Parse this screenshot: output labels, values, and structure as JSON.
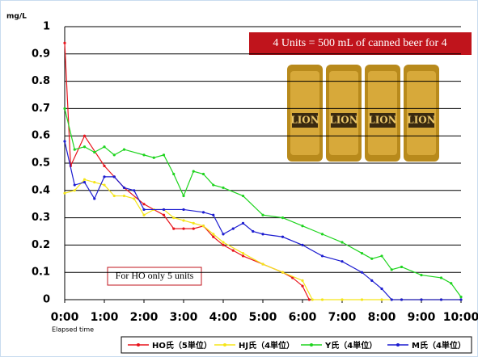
{
  "chart_data": {
    "type": "line",
    "y_label": "mg/L",
    "x_label": "Elapsed time",
    "annotations": [
      "4 Units = 500 mL of canned beer for 4",
      "For HO only 5 units"
    ],
    "xlim": [
      0,
      10
    ],
    "xticks": [
      {
        "value": 0,
        "label": "0:00"
      },
      {
        "value": 1,
        "label": "1:00"
      },
      {
        "value": 2,
        "label": "2:00"
      },
      {
        "value": 3,
        "label": "3:00"
      },
      {
        "value": 4,
        "label": "4:00"
      },
      {
        "value": 5,
        "label": "5:00"
      },
      {
        "value": 6,
        "label": "6:00"
      },
      {
        "value": 7,
        "label": "7:00"
      },
      {
        "value": 8,
        "label": "8:00"
      },
      {
        "value": 9,
        "label": "9:00"
      },
      {
        "value": 10,
        "label": "10:00"
      }
    ],
    "ylim": [
      0,
      1
    ],
    "yticks": [
      0,
      0.1,
      0.2,
      0.3,
      0.4,
      0.5,
      0.6,
      0.7,
      0.8,
      0.9,
      1
    ],
    "grid": true,
    "legend": "bottom",
    "series": [
      {
        "name": "HO氏（5単位）",
        "color": "#e8141c",
        "x": [
          0,
          0.15,
          0.5,
          1.0,
          1.25,
          1.5,
          2.0,
          2.5,
          2.75,
          3.0,
          3.25,
          3.5,
          3.75,
          4.0,
          4.25,
          4.5,
          5.0,
          5.5,
          5.75,
          6.0,
          6.17
        ],
        "values": [
          0.94,
          0.49,
          0.6,
          0.49,
          0.45,
          0.41,
          0.35,
          0.31,
          0.26,
          0.26,
          0.26,
          0.27,
          0.23,
          0.2,
          0.18,
          0.16,
          0.13,
          0.1,
          0.08,
          0.05,
          0
        ]
      },
      {
        "name": "HJ氏（4単位）",
        "color": "#f5e51a",
        "x": [
          0,
          0.25,
          0.5,
          0.75,
          1.0,
          1.25,
          1.5,
          1.75,
          2.0,
          2.25,
          2.5,
          2.75,
          3.0,
          3.25,
          3.5,
          3.75,
          4.0,
          4.5,
          5.0,
          5.5,
          6.0,
          6.25,
          6.5,
          7,
          7.5,
          8,
          8.5,
          9,
          9.5,
          10
        ],
        "values": [
          0.39,
          0.4,
          0.44,
          0.43,
          0.42,
          0.38,
          0.38,
          0.37,
          0.31,
          0.33,
          0.33,
          0.3,
          0.29,
          0.28,
          0.27,
          0.24,
          0.21,
          0.17,
          0.13,
          0.1,
          0.07,
          0,
          0,
          0,
          0,
          0,
          0,
          0,
          0,
          0
        ]
      },
      {
        "name": "Y氏（4単位）",
        "color": "#1ed41e",
        "x": [
          0,
          0.25,
          0.5,
          0.75,
          1.0,
          1.25,
          1.5,
          2.0,
          2.25,
          2.5,
          2.75,
          3.0,
          3.25,
          3.5,
          3.75,
          4.0,
          4.5,
          5.0,
          5.5,
          6.0,
          6.5,
          7.0,
          7.5,
          7.75,
          8.0,
          8.25,
          8.5,
          9.0,
          9.5,
          9.75,
          10.0
        ],
        "values": [
          0.7,
          0.55,
          0.56,
          0.54,
          0.56,
          0.53,
          0.55,
          0.53,
          0.52,
          0.53,
          0.46,
          0.38,
          0.47,
          0.46,
          0.42,
          0.41,
          0.38,
          0.31,
          0.3,
          0.27,
          0.24,
          0.21,
          0.17,
          0.15,
          0.16,
          0.11,
          0.12,
          0.09,
          0.08,
          0.06,
          0.01
        ]
      },
      {
        "name": "M氏（4単位）",
        "color": "#1c1cd0",
        "x": [
          0,
          0.25,
          0.5,
          0.75,
          1.0,
          1.25,
          1.5,
          1.75,
          2.0,
          2.5,
          3.0,
          3.5,
          3.75,
          4.0,
          4.25,
          4.5,
          4.75,
          5.0,
          5.5,
          6.0,
          6.5,
          7.0,
          7.5,
          7.75,
          8.0,
          8.25,
          8.5,
          9,
          9.5,
          10
        ],
        "values": [
          0.58,
          0.42,
          0.43,
          0.37,
          0.45,
          0.45,
          0.41,
          0.4,
          0.33,
          0.33,
          0.33,
          0.32,
          0.31,
          0.24,
          0.26,
          0.28,
          0.25,
          0.24,
          0.23,
          0.2,
          0.16,
          0.14,
          0.1,
          0.07,
          0.04,
          0,
          0,
          0,
          0,
          0
        ]
      }
    ]
  }
}
